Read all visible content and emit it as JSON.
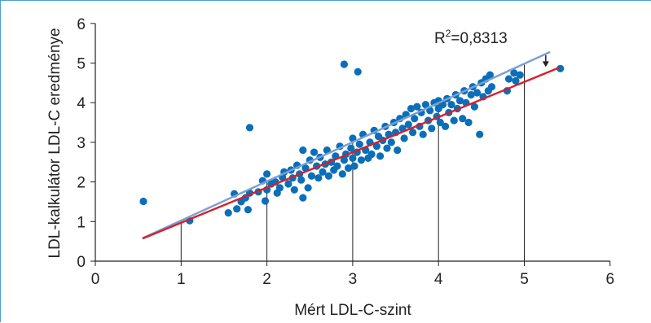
{
  "chart_data": {
    "type": "scatter",
    "xlabel": "Mért LDL-C-szint",
    "ylabel": "LDL-kalkulátor LDL-C eredménye",
    "xlim": [
      0,
      6
    ],
    "ylim": [
      0,
      6
    ],
    "xticks": [
      0,
      1,
      2,
      3,
      4,
      5,
      6
    ],
    "yticks": [
      0,
      1,
      2,
      3,
      4,
      5,
      6
    ],
    "grid": false,
    "annotation": {
      "base": "R",
      "sup": "2",
      "rest": "=0,8313"
    },
    "colors": {
      "points": "#0a6fb8",
      "identity_line": "#7b9fd4",
      "regression_line": "#d81e2a",
      "axis": "#222222"
    },
    "reference_verticals": [
      1,
      2,
      3,
      4,
      5
    ],
    "identity_line": {
      "x": [
        0.55,
        5.3
      ],
      "y": [
        0.58,
        5.28
      ]
    },
    "regression_line": {
      "x": [
        0.55,
        5.4
      ],
      "y": [
        0.57,
        4.88
      ]
    },
    "arrow": {
      "x": 5.25,
      "y_from": 5.2,
      "y_to": 4.9
    },
    "points": [
      [
        0.56,
        1.51
      ],
      [
        1.1,
        1.02
      ],
      [
        1.55,
        1.22
      ],
      [
        1.62,
        1.7
      ],
      [
        1.65,
        1.32
      ],
      [
        1.7,
        1.5
      ],
      [
        1.75,
        1.6
      ],
      [
        1.78,
        1.3
      ],
      [
        1.8,
        1.72
      ],
      [
        1.8,
        3.37
      ],
      [
        1.9,
        1.75
      ],
      [
        1.95,
        2.03
      ],
      [
        1.98,
        1.52
      ],
      [
        2.0,
        1.8
      ],
      [
        2.0,
        2.2
      ],
      [
        2.05,
        1.95
      ],
      [
        2.1,
        2.0
      ],
      [
        2.12,
        1.72
      ],
      [
        2.15,
        1.85
      ],
      [
        2.18,
        2.12
      ],
      [
        2.2,
        2.25
      ],
      [
        2.25,
        1.95
      ],
      [
        2.28,
        2.3
      ],
      [
        2.3,
        2.1
      ],
      [
        2.32,
        1.8
      ],
      [
        2.35,
        2.42
      ],
      [
        2.38,
        2.2
      ],
      [
        2.4,
        2.05
      ],
      [
        2.42,
        1.6
      ],
      [
        2.42,
        2.8
      ],
      [
        2.45,
        2.35
      ],
      [
        2.48,
        1.85
      ],
      [
        2.5,
        2.55
      ],
      [
        2.52,
        2.15
      ],
      [
        2.55,
        2.75
      ],
      [
        2.58,
        2.4
      ],
      [
        2.6,
        2.1
      ],
      [
        2.62,
        2.62
      ],
      [
        2.65,
        2.25
      ],
      [
        2.68,
        2.45
      ],
      [
        2.7,
        2.8
      ],
      [
        2.72,
        2.15
      ],
      [
        2.75,
        2.5
      ],
      [
        2.78,
        2.3
      ],
      [
        2.8,
        2.65
      ],
      [
        2.82,
        2.4
      ],
      [
        2.85,
        2.9
      ],
      [
        2.88,
        2.2
      ],
      [
        2.9,
        2.55
      ],
      [
        2.9,
        4.97
      ],
      [
        2.92,
        2.7
      ],
      [
        2.95,
        2.35
      ],
      [
        2.98,
        2.85
      ],
      [
        3.0,
        2.6
      ],
      [
        3.0,
        3.1
      ],
      [
        3.02,
        2.4
      ],
      [
        3.05,
        2.75
      ],
      [
        3.06,
        4.78
      ],
      [
        3.08,
        2.95
      ],
      [
        3.1,
        2.55
      ],
      [
        3.12,
        3.2
      ],
      [
        3.15,
        2.8
      ],
      [
        3.18,
        2.6
      ],
      [
        3.2,
        3.0
      ],
      [
        3.22,
        2.7
      ],
      [
        3.25,
        3.3
      ],
      [
        3.28,
        2.9
      ],
      [
        3.3,
        3.15
      ],
      [
        3.32,
        2.65
      ],
      [
        3.35,
        3.05
      ],
      [
        3.38,
        3.4
      ],
      [
        3.4,
        2.85
      ],
      [
        3.42,
        3.2
      ],
      [
        3.45,
        3.0
      ],
      [
        3.48,
        3.5
      ],
      [
        3.5,
        3.25
      ],
      [
        3.52,
        2.8
      ],
      [
        3.55,
        3.6
      ],
      [
        3.58,
        3.35
      ],
      [
        3.6,
        3.1
      ],
      [
        3.62,
        3.7
      ],
      [
        3.65,
        3.45
      ],
      [
        3.68,
        3.85
      ],
      [
        3.7,
        3.25
      ],
      [
        3.72,
        3.6
      ],
      [
        3.75,
        3.9
      ],
      [
        3.78,
        3.4
      ],
      [
        3.8,
        3.75
      ],
      [
        3.82,
        3.2
      ],
      [
        3.85,
        3.95
      ],
      [
        3.88,
        3.55
      ],
      [
        3.9,
        3.8
      ],
      [
        3.92,
        3.35
      ],
      [
        3.95,
        4.0
      ],
      [
        3.98,
        3.65
      ],
      [
        4.0,
        3.85
      ],
      [
        4.0,
        4.05
      ],
      [
        4.02,
        3.5
      ],
      [
        4.05,
        3.95
      ],
      [
        4.08,
        3.4
      ],
      [
        4.1,
        4.1
      ],
      [
        4.12,
        3.75
      ],
      [
        4.15,
        3.95
      ],
      [
        4.18,
        3.55
      ],
      [
        4.2,
        4.2
      ],
      [
        4.22,
        3.85
      ],
      [
        4.25,
        4.05
      ],
      [
        4.28,
        3.6
      ],
      [
        4.3,
        4.3
      ],
      [
        4.32,
        4.0
      ],
      [
        4.35,
        3.5
      ],
      [
        4.38,
        4.2
      ],
      [
        4.4,
        4.4
      ],
      [
        4.42,
        3.9
      ],
      [
        4.45,
        4.25
      ],
      [
        4.48,
        3.2
      ],
      [
        4.5,
        4.5
      ],
      [
        4.52,
        4.15
      ],
      [
        4.55,
        4.6
      ],
      [
        4.58,
        4.3
      ],
      [
        4.6,
        4.7
      ],
      [
        4.62,
        4.4
      ],
      [
        4.8,
        4.3
      ],
      [
        4.82,
        4.6
      ],
      [
        4.88,
        4.75
      ],
      [
        4.9,
        4.55
      ],
      [
        4.95,
        4.7
      ],
      [
        5.42,
        4.86
      ]
    ]
  }
}
